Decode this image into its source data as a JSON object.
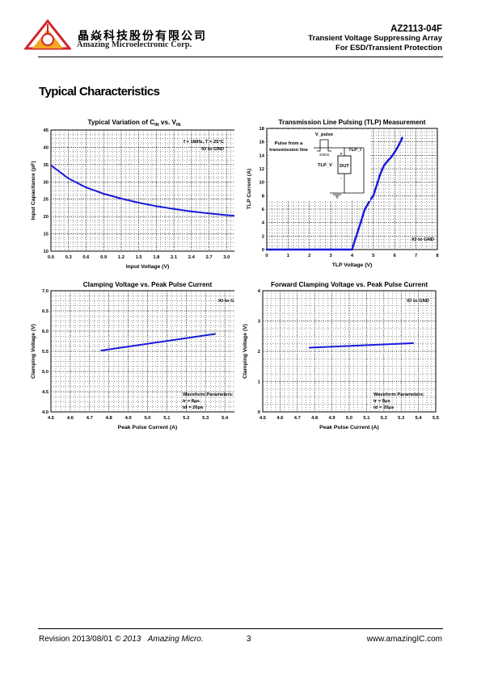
{
  "header": {
    "company_cn": "晶焱科技股份有限公司",
    "company_en": "Amazing Microelectronic Corp.",
    "part_number": "AZ2113-04F",
    "subtitle_1": "Transient Voltage Suppressing Array",
    "subtitle_2": "For ESD/Transient Protection",
    "logo_colors": [
      "#d2232a",
      "#f5a623"
    ]
  },
  "section_title": "Typical Characteristics",
  "footer": {
    "revision": "Revision 2013/08/01",
    "copyright": "© 2013",
    "company": "Amazing Micro.",
    "page_number": "3",
    "website": "www.amazingIC.com"
  },
  "chart_data": [
    {
      "type": "line",
      "title_main": "Typical Variation of C",
      "title_sub1": "IN",
      "title_mid": " vs. V",
      "title_sub2": "IN",
      "xlabel": "Input Voltage (V)",
      "ylabel": "Input Capacitance (pF)",
      "xlim": [
        0,
        3.3
      ],
      "ylim": [
        10,
        45
      ],
      "xticks": [
        "0.0",
        "0.3",
        "0.6",
        "0.9",
        "1.2",
        "1.5",
        "1.8",
        "2.1",
        "2.4",
        "2.7",
        "3.0",
        "3.3"
      ],
      "yticks": [
        "10",
        "15",
        "20",
        "25",
        "30",
        "35",
        "40",
        "45"
      ],
      "annotations": [
        "f = 1MHz, T = 25°C",
        "IO to GND"
      ],
      "grid": true,
      "series_color": "#1a1adc",
      "series": [
        {
          "x": [
            0,
            0.3,
            0.6,
            0.9,
            1.2,
            1.5,
            1.8,
            2.1,
            2.4,
            2.7,
            3.0,
            3.3
          ],
          "y": [
            34.8,
            31.0,
            28.4,
            26.6,
            25.2,
            24.0,
            23.0,
            22.2,
            21.5,
            20.9,
            20.4,
            20.0
          ]
        }
      ]
    },
    {
      "type": "line",
      "title": "Transmission Line Pulsing (TLP) Measurement",
      "xlabel": "TLP Voltage (V)",
      "ylabel": "TLP Current (A)",
      "xlim": [
        0,
        8
      ],
      "ylim": [
        0,
        18
      ],
      "xticks": [
        "0",
        "1",
        "2",
        "3",
        "4",
        "5",
        "6",
        "7",
        "8"
      ],
      "yticks": [
        "0",
        "2",
        "4",
        "6",
        "8",
        "10",
        "12",
        "14",
        "16",
        "18"
      ],
      "annotations": [
        "IO to GND"
      ],
      "inset": {
        "label_pulse": "Pulse from a",
        "label_line": "transmission line",
        "label_vpulse": "V_pulse",
        "label_width": "100ns",
        "label_tlpi": "TLP_I",
        "label_tlpv": "TLP_V",
        "label_dut": "DUT",
        "label_plus": "+",
        "label_minus": "-"
      },
      "grid": true,
      "series_color": "#1a1adc",
      "series": [
        {
          "x": [
            0,
            3.0,
            4.0,
            4.05,
            4.1,
            4.15,
            4.2,
            4.25,
            4.3,
            4.4,
            4.5,
            4.6,
            4.75,
            4.9,
            5.0,
            5.1,
            5.2,
            5.3,
            5.4,
            5.5,
            5.6,
            5.7,
            5.8,
            5.9,
            6.0,
            6.1,
            6.2,
            6.3,
            6.35
          ],
          "y": [
            0,
            0,
            0,
            0.5,
            1.0,
            1.6,
            2.0,
            2.5,
            3.0,
            4.0,
            5.0,
            6.0,
            6.8,
            7.6,
            8.0,
            9.0,
            10.0,
            11.0,
            11.8,
            12.5,
            12.9,
            13.3,
            13.6,
            14.0,
            14.5,
            15.0,
            15.6,
            16.2,
            16.6
          ]
        }
      ]
    },
    {
      "type": "line",
      "title": "Clamping Voltage vs. Peak Pulse Current",
      "xlabel": "Peak Pulse Current (A)",
      "ylabel": "Clamping Voltage (V)",
      "xlim": [
        4.5,
        5.5
      ],
      "ylim": [
        4.0,
        7.0
      ],
      "xticks": [
        "4.5",
        "4.6",
        "4.7",
        "4.8",
        "4.9",
        "5.0",
        "5.1",
        "5.2",
        "5.3",
        "5.4",
        "5.5"
      ],
      "yticks": [
        "4.0",
        "4.5",
        "5.0",
        "5.5",
        "6.0",
        "6.5",
        "7.0"
      ],
      "annotations": [
        "IO to GND",
        "Waveform Parameters:",
        "tr = 8μs",
        "td = 20μs"
      ],
      "grid": true,
      "series_color": "#1a1adc",
      "series": [
        {
          "x": [
            4.76,
            5.35
          ],
          "y": [
            5.52,
            5.93
          ]
        }
      ]
    },
    {
      "type": "line",
      "title": "Forward Clamping Voltage vs. Peak Pulse Current",
      "xlabel": "Peak Pulse Current (A)",
      "ylabel": "Clamping Voltage (V)",
      "xlim": [
        4.5,
        5.5
      ],
      "ylim": [
        0,
        4
      ],
      "xticks": [
        "4.5",
        "4.6",
        "4.7",
        "4.8",
        "4.9",
        "5.0",
        "5.1",
        "5.2",
        "5.3",
        "5.4",
        "5.5"
      ],
      "yticks": [
        "0",
        "1",
        "2",
        "3",
        "4"
      ],
      "annotations": [
        "IO to GND",
        "Waveform Parameters:",
        "tr = 8μs",
        "td = 20μs"
      ],
      "grid": true,
      "series_color": "#1a1adc",
      "series": [
        {
          "x": [
            4.77,
            5.37
          ],
          "y": [
            2.12,
            2.27
          ]
        }
      ]
    }
  ]
}
